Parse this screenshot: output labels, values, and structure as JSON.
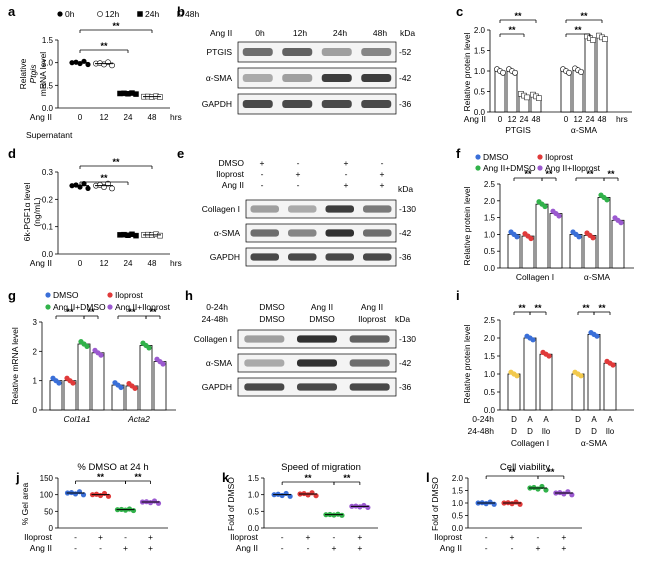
{
  "panels": {
    "a": {
      "label": "a",
      "legend": [
        "0h",
        "12h",
        "24h",
        "48h"
      ],
      "ylabel_italic": "Ptgis",
      "ylabel": "mRNA level",
      "ylabel_top": "Relative",
      "xrow_label": "Ang II",
      "xticks": [
        "0",
        "12",
        "24",
        "48"
      ],
      "xunit": "hrs",
      "sig": "**",
      "subtitle": "Supernatant"
    },
    "b": {
      "label": "b",
      "treatment": "Ang II",
      "cols": [
        "0h",
        "12h",
        "24h",
        "48h"
      ],
      "unit": "kDa",
      "rows": [
        {
          "name": "PTGIS",
          "kda": "-52"
        },
        {
          "name": "α-SMA",
          "kda": "-42"
        },
        {
          "name": "GAPDH",
          "kda": "-36"
        }
      ]
    },
    "c": {
      "label": "c",
      "ylabel": "Relative protein level",
      "xrow_label": "Ang II",
      "xticks": [
        "0",
        "12",
        "24",
        "48",
        "0",
        "12",
        "24",
        "48"
      ],
      "xunit": "hrs",
      "groups": [
        "PTGIS",
        "α-SMA"
      ],
      "sig": "**"
    },
    "d": {
      "label": "d",
      "ylabel": "6k-PGF1α level",
      "yunit": "(ng/mL)",
      "xrow_label": "Ang II",
      "xticks": [
        "0",
        "12",
        "24",
        "48"
      ],
      "xunit": "hrs",
      "sig": "**"
    },
    "e": {
      "label": "e",
      "treat_rows": [
        {
          "name": "DMSO",
          "vals": [
            "+",
            "-",
            "+",
            "-"
          ]
        },
        {
          "name": "Iloprost",
          "vals": [
            "-",
            "+",
            "-",
            "+"
          ]
        },
        {
          "name": "Ang II",
          "vals": [
            "-",
            "-",
            "+",
            "+"
          ]
        }
      ],
      "unit": "kDa",
      "rows": [
        {
          "name": "Collagen I",
          "kda": "-130"
        },
        {
          "name": "α-SMA",
          "kda": "-42"
        },
        {
          "name": "GAPDH",
          "kda": "-36"
        }
      ]
    },
    "f": {
      "label": "f",
      "legend": [
        "DMSO",
        "Iloprost",
        "Ang II+DMSO",
        "Ang II+Iloprost"
      ],
      "ylabel": "Relative protein level",
      "groups": [
        "Collagen I",
        "α-SMA"
      ],
      "sig": "**"
    },
    "g": {
      "label": "g",
      "legend": [
        "DMSO",
        "Iloprost",
        "Ang II+DMSO",
        "Ang II+Iloprost"
      ],
      "ylabel": "Relative mRNA level",
      "groups": [
        "Col1a1",
        "Acta2"
      ],
      "sig": "**"
    },
    "h": {
      "label": "h",
      "row1_label": "0-24h",
      "row2_label": "24-48h",
      "col_row1": [
        "DMSO",
        "Ang II",
        "Ang II"
      ],
      "col_row2": [
        "DMSO",
        "DMSO",
        "Iloprost"
      ],
      "unit": "kDa",
      "rows": [
        {
          "name": "Collagen I",
          "kda": "-130"
        },
        {
          "name": "α-SMA",
          "kda": "-42"
        },
        {
          "name": "GAPDH",
          "kda": "-36"
        }
      ]
    },
    "i": {
      "label": "i",
      "ylabel": "Relative protein level",
      "row1_label": "0-24h",
      "row2_label": "24-48h",
      "row1": [
        "D",
        "A",
        "A",
        "D",
        "A",
        "A"
      ],
      "row2": [
        "D",
        "D",
        "Ilo",
        "D",
        "D",
        "Ilo"
      ],
      "groups": [
        "Collagen I",
        "α-SMA"
      ],
      "sig": "**"
    },
    "j": {
      "label": "j",
      "title": "% DMSO at 24 h",
      "ylabel": "% Gel area",
      "sig": "**"
    },
    "k": {
      "label": "k",
      "title": "Speed of migration",
      "ylabel": "Fold of DMSO",
      "sig": "**"
    },
    "l": {
      "label": "l",
      "title": "Cell viability",
      "ylabel": "Fold of DMSO",
      "sig": "**"
    }
  },
  "treat_rows_jkl": [
    {
      "name": "Iloprost",
      "vals": [
        "-",
        "+",
        "-",
        "+"
      ]
    },
    {
      "name": "Ang II",
      "vals": [
        "-",
        "-",
        "+",
        "+"
      ]
    }
  ],
  "colors": {
    "dmso": "#3a6fd8",
    "iloprost": "#e03a3a",
    "angii_dmso": "#31b24a",
    "angii_iloprost": "#9b59d0",
    "yellow": "#f2c94c"
  },
  "chart_data": [
    {
      "panel": "a",
      "type": "scatter",
      "categories": [
        "0",
        "12",
        "24",
        "48"
      ],
      "values": [
        1.0,
        0.98,
        0.32,
        0.25
      ],
      "ylim": [
        0,
        1.5
      ],
      "yticks": [
        "0.0",
        "0.5",
        "1.0",
        "1.5"
      ]
    },
    {
      "panel": "c",
      "type": "bar",
      "categories": [
        "0",
        "12",
        "24",
        "48",
        "0",
        "12",
        "24",
        "48"
      ],
      "values": [
        1.0,
        1.0,
        0.4,
        0.38,
        1.0,
        1.02,
        1.8,
        1.82
      ],
      "ylim": [
        0,
        2.0
      ],
      "yticks": [
        "0.0",
        "0.5",
        "1.0",
        "1.5",
        "2.0"
      ]
    },
    {
      "panel": "d",
      "type": "scatter",
      "categories": [
        "0",
        "12",
        "24",
        "48"
      ],
      "values": [
        0.25,
        0.25,
        0.07,
        0.07
      ],
      "ylim": [
        0,
        0.3
      ],
      "yticks": [
        "0.0",
        "0.1",
        "0.2",
        "0.3"
      ]
    },
    {
      "panel": "f",
      "type": "bar",
      "categories": [
        "Collagen I",
        "α-SMA"
      ],
      "series": [
        {
          "values": [
            1.0,
            1.0
          ]
        },
        {
          "values": [
            0.95,
            0.97
          ]
        },
        {
          "values": [
            1.9,
            2.1
          ]
        },
        {
          "values": [
            1.62,
            1.42
          ]
        }
      ],
      "ylim": [
        0,
        2.5
      ],
      "yticks": [
        "0.0",
        "0.5",
        "1.0",
        "1.5",
        "2.0",
        "2.5"
      ]
    },
    {
      "panel": "g",
      "type": "bar",
      "categories": [
        "Col1a1",
        "Acta2"
      ],
      "series": [
        {
          "values": [
            1.0,
            0.85
          ]
        },
        {
          "values": [
            1.0,
            0.82
          ]
        },
        {
          "values": [
            2.25,
            2.2
          ]
        },
        {
          "values": [
            1.95,
            1.65
          ]
        }
      ],
      "ylim": [
        0,
        3
      ],
      "yticks": [
        "0",
        "1",
        "2",
        "3"
      ]
    },
    {
      "panel": "i",
      "type": "bar",
      "categories": [
        "D/D",
        "A/D",
        "A/Ilo",
        "D/D",
        "A/D",
        "A/Ilo"
      ],
      "values": [
        1.0,
        2.0,
        1.55,
        1.0,
        2.1,
        1.3
      ],
      "ylim": [
        0,
        2.5
      ],
      "yticks": [
        "0.0",
        "0.5",
        "1.0",
        "1.5",
        "2.0",
        "2.5"
      ]
    },
    {
      "panel": "j",
      "type": "scatter",
      "categories": [
        "1",
        "2",
        "3",
        "4"
      ],
      "values": [
        105,
        100,
        55,
        78
      ],
      "ylim": [
        0,
        150
      ],
      "yticks": [
        "0",
        "50",
        "100",
        "150"
      ]
    },
    {
      "panel": "k",
      "type": "scatter",
      "categories": [
        "1",
        "2",
        "3",
        "4"
      ],
      "values": [
        1.0,
        1.02,
        0.4,
        0.65
      ],
      "ylim": [
        0,
        1.5
      ],
      "yticks": [
        "0.0",
        "0.5",
        "1.0",
        "1.5"
      ]
    },
    {
      "panel": "l",
      "type": "scatter",
      "categories": [
        "1",
        "2",
        "3",
        "4"
      ],
      "values": [
        1.0,
        1.0,
        1.6,
        1.4
      ],
      "ylim": [
        0,
        2.0
      ],
      "yticks": [
        "0.0",
        "0.5",
        "1.0",
        "1.5",
        "2.0"
      ]
    }
  ]
}
